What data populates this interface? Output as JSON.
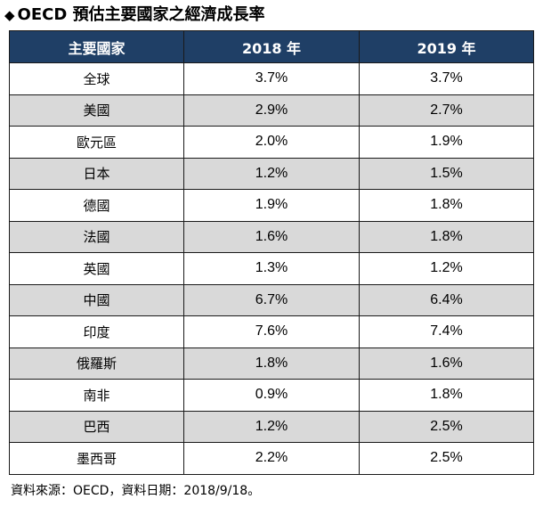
{
  "title": {
    "marker": "◆",
    "text": "OECD 預估主要國家之經濟成長率"
  },
  "table": {
    "headers": [
      "主要國家",
      "2018 年",
      "2019 年"
    ],
    "rows": [
      [
        "全球",
        "3.7%",
        "3.7%"
      ],
      [
        "美國",
        "2.9%",
        "2.7%"
      ],
      [
        "歐元區",
        "2.0%",
        "1.9%"
      ],
      [
        "日本",
        "1.2%",
        "1.5%"
      ],
      [
        "德國",
        "1.9%",
        "1.8%"
      ],
      [
        "法國",
        "1.6%",
        "1.8%"
      ],
      [
        "英國",
        "1.3%",
        "1.2%"
      ],
      [
        "中國",
        "6.7%",
        "6.4%"
      ],
      [
        "印度",
        "7.6%",
        "7.4%"
      ],
      [
        "俄羅斯",
        "1.8%",
        "1.6%"
      ],
      [
        "南非",
        "0.9%",
        "1.8%"
      ],
      [
        "巴西",
        "1.2%",
        "2.5%"
      ],
      [
        "墨西哥",
        "2.2%",
        "2.5%"
      ]
    ]
  },
  "footnote": "資料來源：OECD，資料日期：2018/9/18。",
  "colors": {
    "header_bg": "#1f3f66",
    "header_text": "#ffffff",
    "alt_row_bg": "#d9d9d9"
  }
}
